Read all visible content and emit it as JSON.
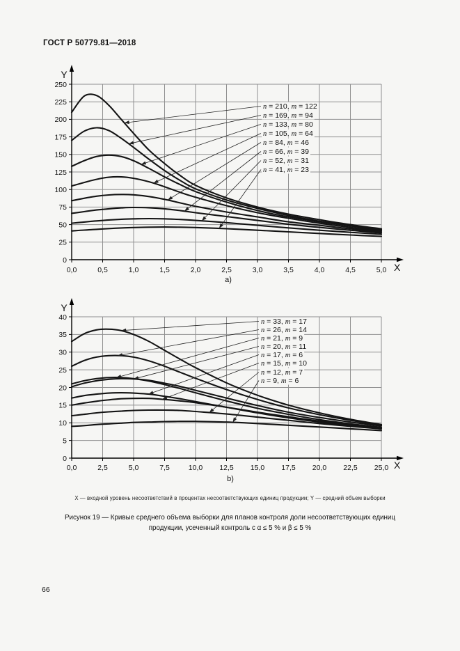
{
  "page": {
    "header": "ГОСТ Р 50779.81—2018",
    "page_number": "66",
    "footnote": "X — входной уровень несоответствий в процентах несоответствующих единиц продукции; Y — средний объем выборки",
    "caption_line1": "Рисунок 19 — Кривые среднего объема выборки для планов контроля доли несоответствующих единиц",
    "caption_line2": "продукции, усеченный контроль с α ≤ 5 % и β ≤ 5 %"
  },
  "chart_data": [
    {
      "id": "a",
      "type": "line",
      "sublabel": "a)",
      "xlabel": "X",
      "ylabel": "Y",
      "xlim": [
        0,
        5
      ],
      "ylim": [
        0,
        250
      ],
      "grid": true,
      "legend_position": "inside-right",
      "x_ticks": [
        {
          "v": 0,
          "label": "0,0"
        },
        {
          "v": 0.5,
          "label": "0,5"
        },
        {
          "v": 1,
          "label": "1,0"
        },
        {
          "v": 1.5,
          "label": "1,5"
        },
        {
          "v": 2,
          "label": "2,0"
        },
        {
          "v": 2.5,
          "label": "2,5"
        },
        {
          "v": 3,
          "label": "3,0"
        },
        {
          "v": 3.5,
          "label": "3,5"
        },
        {
          "v": 4,
          "label": "4,0"
        },
        {
          "v": 4.5,
          "label": "4,5"
        },
        {
          "v": 5,
          "label": "5,0"
        }
      ],
      "y_ticks": [
        {
          "v": 0,
          "label": "0"
        },
        {
          "v": 25,
          "label": "25"
        },
        {
          "v": 50,
          "label": "50"
        },
        {
          "v": 75,
          "label": "75"
        },
        {
          "v": 100,
          "label": "100"
        },
        {
          "v": 125,
          "label": "125"
        },
        {
          "v": 150,
          "label": "150"
        },
        {
          "v": 175,
          "label": "175"
        },
        {
          "v": 200,
          "label": "200"
        },
        {
          "v": 225,
          "label": "225"
        },
        {
          "v": 250,
          "label": "250"
        }
      ],
      "x": [
        0,
        0.2,
        0.4,
        0.6,
        0.8,
        1.0,
        1.25,
        1.5,
        1.75,
        2.0,
        2.5,
        3.0,
        3.5,
        4.0,
        4.5,
        5.0
      ],
      "series": [
        {
          "name": "n = 210, m = 122",
          "n": "210",
          "m": "122",
          "leader_x": 0.85,
          "values": [
            210,
            233,
            234,
            220,
            200,
            180,
            156,
            137,
            120,
            106,
            88,
            75,
            65,
            57,
            50,
            44
          ]
        },
        {
          "name": "n = 169, m = 94",
          "n": "169",
          "m": "94",
          "leader_x": 0.92,
          "values": [
            170,
            183,
            188,
            184,
            173,
            160,
            143,
            127,
            113,
            101,
            85,
            73,
            63,
            55,
            49,
            43
          ]
        },
        {
          "name": "n = 133, m = 80",
          "n": "133",
          "m": "80",
          "leader_x": 1.12,
          "values": [
            133,
            141,
            147,
            149,
            147,
            141,
            130,
            118,
            107,
            97,
            82,
            70,
            61,
            54,
            48,
            42
          ]
        },
        {
          "name": "n = 105, m = 64",
          "n": "105",
          "m": "64",
          "leader_x": 1.32,
          "values": [
            105,
            110,
            114.5,
            117.5,
            118,
            116,
            111,
            104,
            96,
            89,
            77,
            67,
            59,
            52,
            46,
            41
          ]
        },
        {
          "name": "n = 84, m = 46",
          "n": "84",
          "m": "46",
          "leader_x": 1.55,
          "values": [
            84,
            87.5,
            90.5,
            92.3,
            93,
            92.5,
            90,
            86,
            81,
            76,
            68,
            61,
            54,
            49,
            44,
            39.5
          ]
        },
        {
          "name": "n = 66, m = 39",
          "n": "66",
          "m": "39",
          "leader_x": 1.82,
          "values": [
            66,
            68.5,
            70.8,
            72.5,
            73.8,
            74.4,
            74,
            72.5,
            70,
            67,
            61.5,
            56,
            50.5,
            46,
            42,
            38
          ]
        },
        {
          "name": "n = 52, m = 31",
          "n": "52",
          "m": "31",
          "leader_x": 2.1,
          "values": [
            52,
            53.7,
            55.3,
            56.6,
            57.6,
            58.2,
            58.5,
            58.2,
            57.3,
            56,
            52.8,
            49,
            45.3,
            42,
            39,
            36.2
          ]
        },
        {
          "name": "n = 41, m = 23",
          "n": "41",
          "m": "23",
          "leader_x": 2.38,
          "values": [
            41,
            42.2,
            43.3,
            44.3,
            45.2,
            45.8,
            46.3,
            46.5,
            46.3,
            45.8,
            44.2,
            42,
            39.7,
            37.4,
            35.2,
            33.2
          ]
        }
      ]
    },
    {
      "id": "b",
      "type": "line",
      "sublabel": "b)",
      "xlabel": "X",
      "ylabel": "Y",
      "xlim": [
        0,
        25
      ],
      "ylim": [
        0,
        40
      ],
      "grid": true,
      "legend_position": "inside-right",
      "x_ticks": [
        {
          "v": 0,
          "label": "0,0"
        },
        {
          "v": 2.5,
          "label": "2,5"
        },
        {
          "v": 5,
          "label": "5,0"
        },
        {
          "v": 7.5,
          "label": "7,5"
        },
        {
          "v": 10,
          "label": "10,0"
        },
        {
          "v": 12.5,
          "label": "12,5"
        },
        {
          "v": 15,
          "label": "15,0"
        },
        {
          "v": 17.5,
          "label": "17,5"
        },
        {
          "v": 20,
          "label": "20,0"
        },
        {
          "v": 22.5,
          "label": "22,5"
        },
        {
          "v": 25,
          "label": "25,0"
        }
      ],
      "y_ticks": [
        {
          "v": 0,
          "label": "0"
        },
        {
          "v": 5,
          "label": "5"
        },
        {
          "v": 10,
          "label": "10"
        },
        {
          "v": 15,
          "label": "15"
        },
        {
          "v": 20,
          "label": "20"
        },
        {
          "v": 25,
          "label": "25"
        },
        {
          "v": 30,
          "label": "30"
        },
        {
          "v": 35,
          "label": "35"
        },
        {
          "v": 40,
          "label": "40"
        }
      ],
      "x": [
        0,
        1,
        2,
        3,
        4,
        5,
        6.25,
        7.5,
        8.75,
        10,
        12.5,
        15,
        17.5,
        20,
        22.5,
        25
      ],
      "series": [
        {
          "name": "n = 33, m = 17",
          "n": "33",
          "m": "17",
          "leader_x": 4.0,
          "values": [
            33,
            35.2,
            36.3,
            36.5,
            36.1,
            35,
            33,
            30.5,
            28,
            25.6,
            21.3,
            17.8,
            15,
            12.8,
            11,
            9.5
          ]
        },
        {
          "name": "n = 26, m = 14",
          "n": "26",
          "m": "14",
          "leader_x": 3.7,
          "values": [
            26,
            27.6,
            28.6,
            29,
            29,
            28.6,
            27.5,
            26,
            24.3,
            22.6,
            19.4,
            16.6,
            14.2,
            12.3,
            10.7,
            9.3
          ]
        },
        {
          "name": "n = 21, m = 9",
          "n": "21",
          "m": "9",
          "leader_x": 3.6,
          "values": [
            21,
            21.9,
            22.5,
            22.8,
            22.8,
            22.5,
            21.8,
            20.8,
            19.7,
            18.5,
            16.2,
            14.1,
            12.4,
            10.9,
            9.7,
            8.7
          ]
        },
        {
          "name": "n = 20, m = 11",
          "n": "20",
          "m": "11",
          "leader_x": 5.0,
          "values": [
            20.2,
            21.2,
            21.9,
            22.3,
            22.5,
            22.4,
            22,
            21.2,
            20.3,
            19.2,
            17,
            14.9,
            13,
            11.5,
            10.2,
            9.1
          ]
        },
        {
          "name": "n = 17, m = 6",
          "n": "17",
          "m": "6",
          "leader_x": 6.2,
          "values": [
            17,
            17.7,
            18.1,
            18.4,
            18.5,
            18.4,
            18.1,
            17.5,
            16.8,
            16,
            14.4,
            12.8,
            11.4,
            10.2,
            9.2,
            8.3
          ]
        },
        {
          "name": "n = 15, m = 10",
          "n": "15",
          "m": "10",
          "leader_x": 7.3,
          "values": [
            15,
            15.6,
            16.1,
            16.5,
            16.8,
            16.9,
            16.9,
            16.6,
            16.2,
            15.7,
            14.4,
            13,
            11.7,
            10.5,
            9.5,
            8.6
          ]
        },
        {
          "name": "n = 12, m = 7",
          "n": "12",
          "m": "7",
          "leader_x": 11.1,
          "values": [
            12,
            12.4,
            12.8,
            13.1,
            13.3,
            13.5,
            13.6,
            13.6,
            13.5,
            13.2,
            12.5,
            11.6,
            10.7,
            9.8,
            9,
            8.3
          ]
        },
        {
          "name": "n = 9, m = 6",
          "n": "9",
          "m": "6",
          "leader_x": 13.0,
          "values": [
            9,
            9.2,
            9.5,
            9.7,
            9.9,
            10.1,
            10.2,
            10.35,
            10.4,
            10.4,
            10.2,
            9.8,
            9.3,
            8.8,
            8.3,
            7.8
          ]
        }
      ]
    }
  ]
}
